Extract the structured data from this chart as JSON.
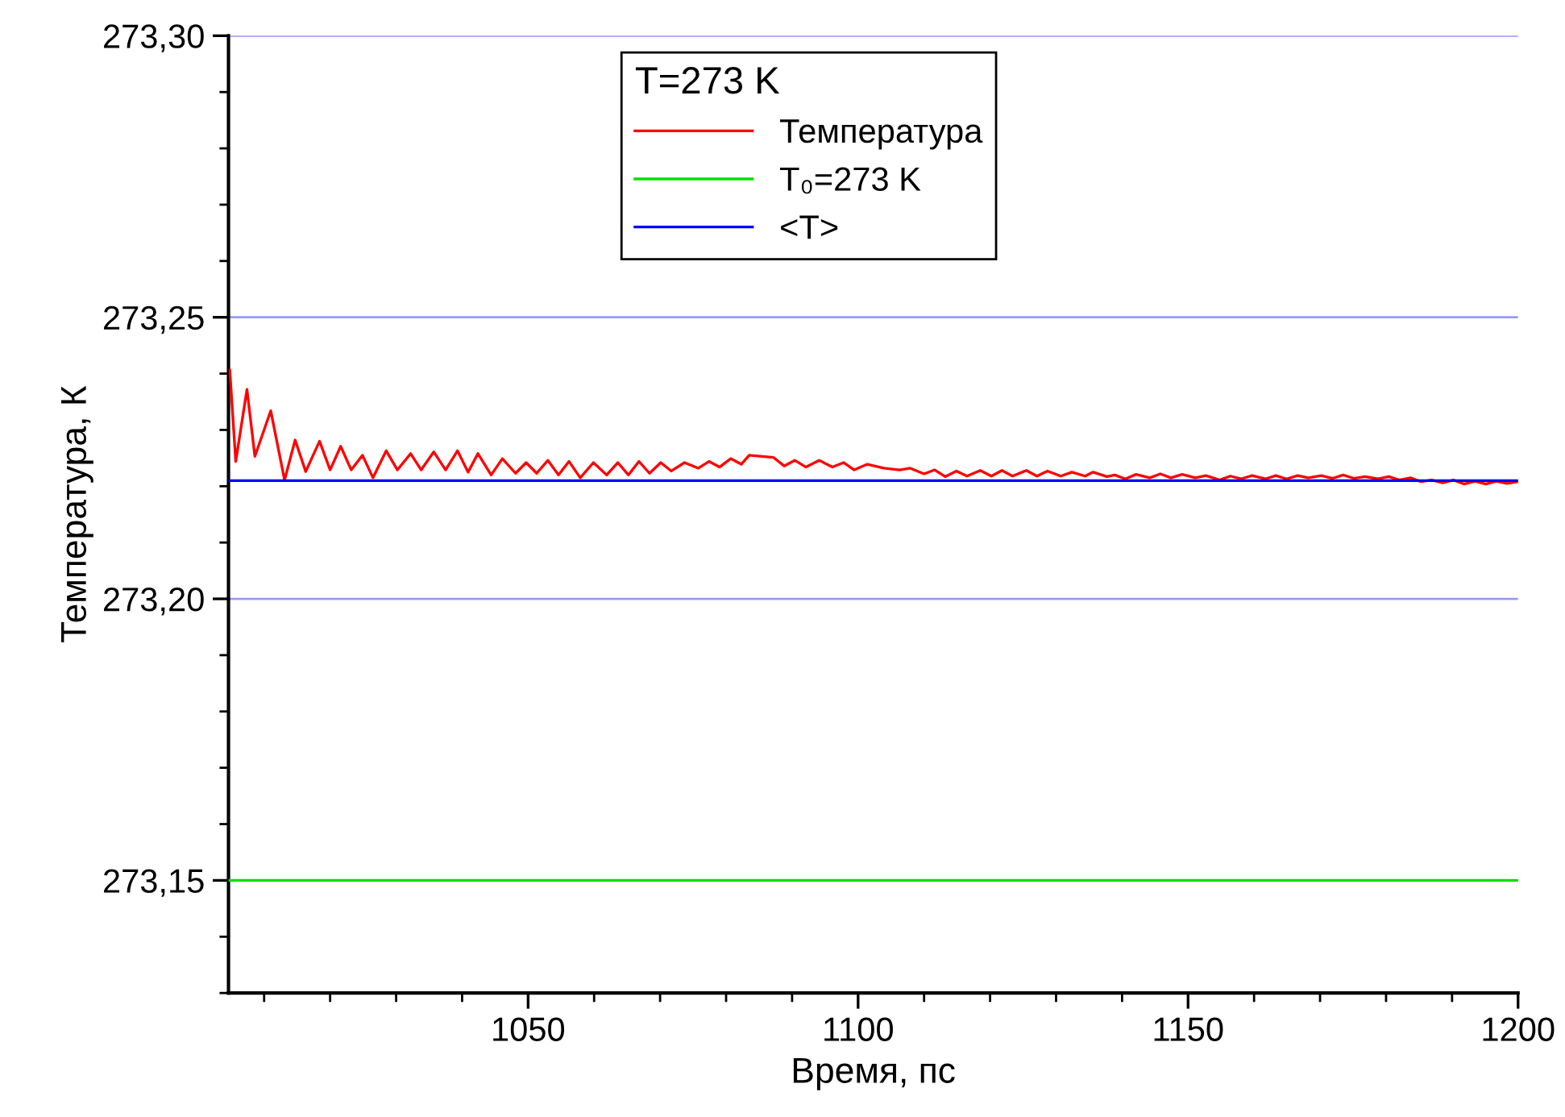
{
  "chart_data": {
    "type": "line",
    "xlabel": "Время, пс",
    "ylabel": "Температура, К",
    "legend_title": "T=273 K",
    "xlim": [
      1004.6,
      1200
    ],
    "xticks": [
      1050,
      1100,
      1150,
      1200
    ],
    "ylim": [
      273.13,
      273.3
    ],
    "yticks": [
      {
        "value": 273.15,
        "label": "273,15"
      },
      {
        "value": 273.2,
        "label": "273,20"
      },
      {
        "value": 273.25,
        "label": "273,25"
      },
      {
        "value": 273.3,
        "label": "273,30"
      }
    ],
    "grid": "y",
    "legend": "top",
    "marker": "none",
    "line_style": "solid",
    "series": [
      {
        "name": "Температура",
        "color": "#ff0000",
        "x": [
          1004.8,
          1005.7,
          1007.4,
          1008.6,
          1011.0,
          1013.1,
          1014.7,
          1016.3,
          1018.4,
          1020.0,
          1021.6,
          1023.2,
          1024.9,
          1026.5,
          1028.5,
          1030.2,
          1032.2,
          1033.8,
          1035.7,
          1037.5,
          1039.3,
          1040.9,
          1042.4,
          1044.4,
          1046.1,
          1048.1,
          1049.7,
          1051.3,
          1053.0,
          1054.6,
          1056.2,
          1057.9,
          1059.9,
          1061.9,
          1063.6,
          1065.2,
          1066.8,
          1068.4,
          1070.1,
          1071.7,
          1073.7,
          1075.8,
          1077.4,
          1079.0,
          1080.7,
          1082.3,
          1083.5,
          1087.2,
          1088.8,
          1090.4,
          1092.1,
          1094.1,
          1096.1,
          1097.8,
          1099.4,
          1101.4,
          1103.9,
          1106.3,
          1107.9,
          1110.0,
          1111.6,
          1113.2,
          1114.9,
          1116.5,
          1118.5,
          1120.2,
          1121.8,
          1123.4,
          1125.5,
          1127.1,
          1128.7,
          1130.7,
          1132.4,
          1134.4,
          1135.6,
          1137.7,
          1138.9,
          1140.5,
          1142.1,
          1144.2,
          1145.8,
          1147.4,
          1149.1,
          1151.1,
          1152.7,
          1154.8,
          1156.4,
          1158.0,
          1159.7,
          1161.7,
          1163.3,
          1164.9,
          1166.6,
          1168.2,
          1170.2,
          1171.9,
          1173.5,
          1175.1,
          1176.8,
          1178.8,
          1180.4,
          1182.0,
          1183.7,
          1185.3,
          1186.9,
          1188.6,
          1190.2,
          1191.8,
          1193.5,
          1195.1,
          1196.7,
          1198.3,
          1200.0
        ],
        "values": [
          273.2406,
          273.2244,
          273.2372,
          273.2253,
          273.2334,
          273.2211,
          273.2282,
          273.2226,
          273.228,
          273.2229,
          273.2271,
          273.2229,
          273.2255,
          273.2215,
          273.2263,
          273.2229,
          273.2258,
          273.2229,
          273.2261,
          273.2229,
          273.2263,
          273.2225,
          273.2258,
          273.222,
          273.2249,
          273.2223,
          273.2242,
          273.2223,
          273.2246,
          273.222,
          273.2244,
          273.2215,
          273.2242,
          273.222,
          273.2242,
          273.222,
          273.2244,
          273.2223,
          273.2242,
          273.2227,
          273.2242,
          273.2232,
          273.2244,
          273.2234,
          273.2249,
          273.2239,
          273.2255,
          273.2251,
          273.2236,
          273.2246,
          273.2234,
          273.2246,
          273.2234,
          273.2242,
          273.2229,
          273.2239,
          273.2232,
          273.2229,
          273.2232,
          273.2222,
          273.2229,
          273.2217,
          273.2227,
          273.2218,
          273.2228,
          273.2218,
          273.2228,
          273.2218,
          273.2228,
          273.2218,
          273.2227,
          273.2218,
          273.2225,
          273.2218,
          273.2225,
          273.2217,
          273.222,
          273.2213,
          273.2221,
          273.2215,
          273.2222,
          273.2215,
          273.2221,
          273.2215,
          273.2219,
          273.2211,
          273.2218,
          273.2213,
          273.2219,
          273.2213,
          273.2219,
          273.2213,
          273.2219,
          273.2215,
          273.2219,
          273.2214,
          273.222,
          273.2214,
          273.2217,
          273.2213,
          273.2217,
          273.2211,
          273.2215,
          273.2208,
          273.2211,
          273.2206,
          273.2211,
          273.2204,
          273.2209,
          273.2204,
          273.2209,
          273.2205,
          273.2208
        ]
      },
      {
        "name": "T₀=273 K",
        "color": "#00e000",
        "x": [
          1004.6,
          1200
        ],
        "values": [
          273.15,
          273.15
        ]
      },
      {
        "name": "<T>",
        "color": "#0000ff",
        "x": [
          1004.6,
          1200
        ],
        "values": [
          273.221,
          273.221
        ]
      }
    ]
  }
}
